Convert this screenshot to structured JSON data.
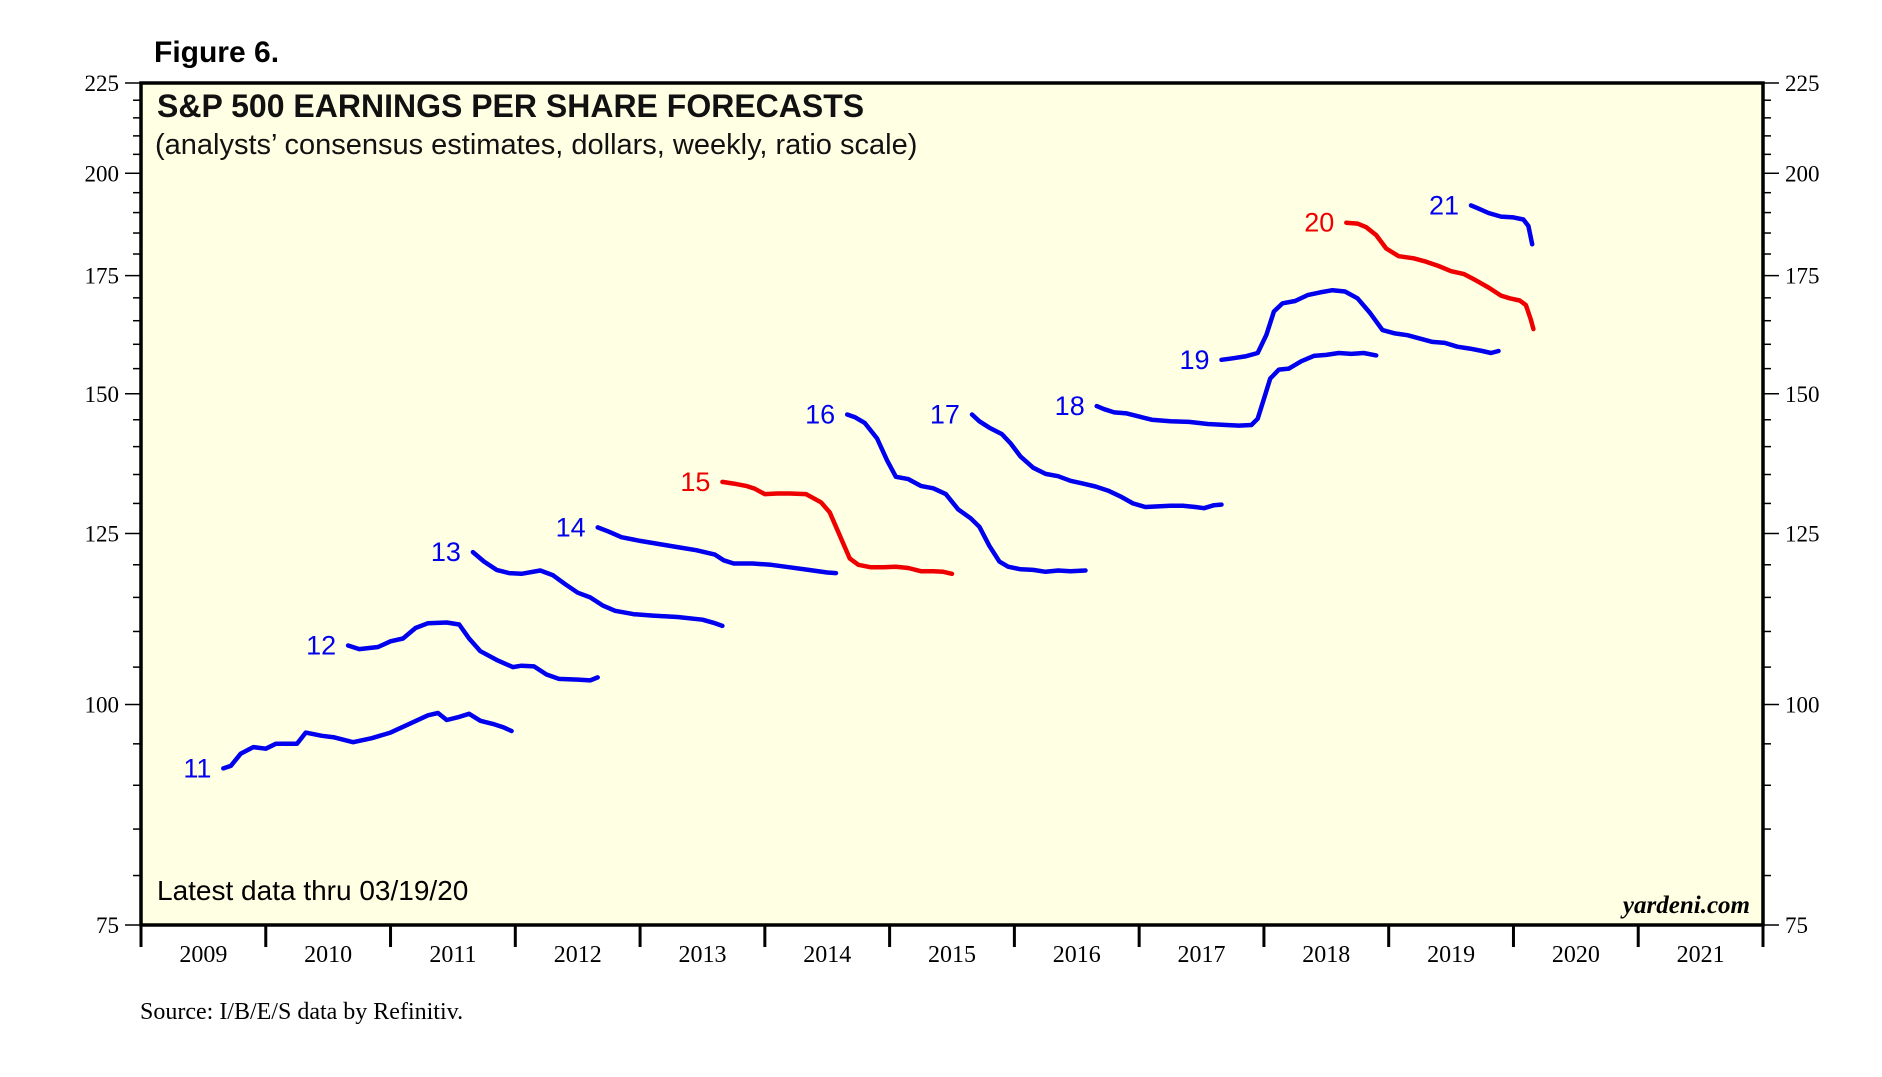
{
  "figure_label": "Figure 6.",
  "source": "Source: I/B/E/S data by Refinitiv.",
  "note": "Latest data thru 03/19/20",
  "credit": "yardeni.com",
  "colors": {
    "blue": "#0000ee",
    "red": "#ee0000",
    "plot_bg": "#ffffe3",
    "frame": "#000000"
  },
  "chart_data": {
    "type": "line",
    "title": "S&P 500 EARNINGS PER SHARE FORECASTS",
    "subtitle": "(analysts’ consensus estimates, dollars, weekly, ratio scale)",
    "y_scale": "log",
    "ylim": [
      75,
      225
    ],
    "xlim": [
      2009.0,
      2022.0
    ],
    "y_ticks": [
      75,
      100,
      125,
      150,
      175,
      200,
      225
    ],
    "y_tick_labels": [
      "75",
      "100",
      "125",
      "150",
      "175",
      "200",
      "225"
    ],
    "x_tick_labels": [
      "2009",
      "2010",
      "2011",
      "2012",
      "2013",
      "2014",
      "2015",
      "2016",
      "2017",
      "2018",
      "2019",
      "2020",
      "2021"
    ],
    "grid": false,
    "series": [
      {
        "name": "11",
        "color": "#0000ee",
        "points": [
          [
            2009.66,
            92
          ],
          [
            2009.72,
            92.3
          ],
          [
            2009.8,
            93.8
          ],
          [
            2009.9,
            94.6
          ],
          [
            2010.0,
            94.4
          ],
          [
            2010.08,
            95
          ],
          [
            2010.15,
            95
          ],
          [
            2010.25,
            95
          ],
          [
            2010.32,
            96.4
          ],
          [
            2010.45,
            96
          ],
          [
            2010.55,
            95.8
          ],
          [
            2010.7,
            95.2
          ],
          [
            2010.85,
            95.7
          ],
          [
            2011.0,
            96.4
          ],
          [
            2011.15,
            97.5
          ],
          [
            2011.3,
            98.6
          ],
          [
            2011.38,
            98.9
          ],
          [
            2011.45,
            98
          ],
          [
            2011.55,
            98.4
          ],
          [
            2011.63,
            98.8
          ],
          [
            2011.72,
            97.9
          ],
          [
            2011.82,
            97.5
          ],
          [
            2011.9,
            97.1
          ],
          [
            2011.97,
            96.6
          ]
        ]
      },
      {
        "name": "12",
        "color": "#0000ee",
        "points": [
          [
            2010.66,
            108
          ],
          [
            2010.75,
            107.5
          ],
          [
            2010.9,
            107.8
          ],
          [
            2011.0,
            108.6
          ],
          [
            2011.1,
            109
          ],
          [
            2011.2,
            110.5
          ],
          [
            2011.3,
            111.2
          ],
          [
            2011.45,
            111.3
          ],
          [
            2011.55,
            111
          ],
          [
            2011.63,
            109
          ],
          [
            2011.72,
            107.2
          ],
          [
            2011.85,
            106
          ],
          [
            2011.98,
            105
          ],
          [
            2012.05,
            105.2
          ],
          [
            2012.15,
            105.1
          ],
          [
            2012.25,
            104
          ],
          [
            2012.35,
            103.4
          ],
          [
            2012.5,
            103.3
          ],
          [
            2012.6,
            103.2
          ],
          [
            2012.66,
            103.6
          ]
        ]
      },
      {
        "name": "13",
        "color": "#0000ee",
        "points": [
          [
            2011.66,
            122
          ],
          [
            2011.75,
            120.5
          ],
          [
            2011.85,
            119.2
          ],
          [
            2011.95,
            118.7
          ],
          [
            2012.05,
            118.6
          ],
          [
            2012.2,
            119.1
          ],
          [
            2012.3,
            118.4
          ],
          [
            2012.4,
            117
          ],
          [
            2012.5,
            115.7
          ],
          [
            2012.6,
            115
          ],
          [
            2012.7,
            113.8
          ],
          [
            2012.8,
            113
          ],
          [
            2012.95,
            112.5
          ],
          [
            2013.1,
            112.3
          ],
          [
            2013.3,
            112.1
          ],
          [
            2013.5,
            111.7
          ],
          [
            2013.6,
            111.2
          ],
          [
            2013.66,
            110.8
          ]
        ]
      },
      {
        "name": "14",
        "color": "#0000ee",
        "points": [
          [
            2012.66,
            126
          ],
          [
            2012.75,
            125.3
          ],
          [
            2012.85,
            124.4
          ],
          [
            2013.0,
            123.8
          ],
          [
            2013.15,
            123.3
          ],
          [
            2013.3,
            122.8
          ],
          [
            2013.45,
            122.3
          ],
          [
            2013.6,
            121.6
          ],
          [
            2013.67,
            120.7
          ],
          [
            2013.75,
            120.2
          ],
          [
            2013.9,
            120.2
          ],
          [
            2014.05,
            120
          ],
          [
            2014.2,
            119.6
          ],
          [
            2014.35,
            119.2
          ],
          [
            2014.5,
            118.8
          ],
          [
            2014.57,
            118.7
          ]
        ]
      },
      {
        "name": "15",
        "color": "#ee0000",
        "points": [
          [
            2013.66,
            133.7
          ],
          [
            2013.75,
            133.4
          ],
          [
            2013.85,
            133
          ],
          [
            2013.92,
            132.5
          ],
          [
            2014.0,
            131.6
          ],
          [
            2014.1,
            131.7
          ],
          [
            2014.2,
            131.7
          ],
          [
            2014.33,
            131.6
          ],
          [
            2014.45,
            130.2
          ],
          [
            2014.52,
            128.5
          ],
          [
            2014.6,
            124.7
          ],
          [
            2014.68,
            121
          ],
          [
            2014.75,
            120
          ],
          [
            2014.85,
            119.6
          ],
          [
            2014.95,
            119.6
          ],
          [
            2015.05,
            119.7
          ],
          [
            2015.15,
            119.5
          ],
          [
            2015.25,
            119
          ],
          [
            2015.35,
            119
          ],
          [
            2015.43,
            118.9
          ],
          [
            2015.5,
            118.6
          ]
        ]
      },
      {
        "name": "16",
        "color": "#0000ee",
        "points": [
          [
            2014.66,
            146
          ],
          [
            2014.72,
            145.5
          ],
          [
            2014.8,
            144.4
          ],
          [
            2014.9,
            141.5
          ],
          [
            2014.98,
            137.5
          ],
          [
            2015.05,
            134.6
          ],
          [
            2015.15,
            134.2
          ],
          [
            2015.25,
            133
          ],
          [
            2015.35,
            132.6
          ],
          [
            2015.45,
            131.6
          ],
          [
            2015.55,
            129
          ],
          [
            2015.65,
            127.5
          ],
          [
            2015.72,
            126.1
          ],
          [
            2015.8,
            123
          ],
          [
            2015.88,
            120.5
          ],
          [
            2015.95,
            119.7
          ],
          [
            2016.05,
            119.3
          ],
          [
            2016.15,
            119.2
          ],
          [
            2016.25,
            118.9
          ],
          [
            2016.35,
            119.1
          ],
          [
            2016.45,
            119
          ],
          [
            2016.57,
            119.1
          ]
        ]
      },
      {
        "name": "17",
        "color": "#0000ee",
        "points": [
          [
            2015.66,
            146
          ],
          [
            2015.72,
            144.7
          ],
          [
            2015.8,
            143.5
          ],
          [
            2015.9,
            142.3
          ],
          [
            2015.97,
            140.6
          ],
          [
            2016.05,
            138.2
          ],
          [
            2016.15,
            136.2
          ],
          [
            2016.25,
            135.1
          ],
          [
            2016.35,
            134.7
          ],
          [
            2016.45,
            133.9
          ],
          [
            2016.55,
            133.4
          ],
          [
            2016.65,
            132.9
          ],
          [
            2016.75,
            132.2
          ],
          [
            2016.85,
            131.2
          ],
          [
            2016.95,
            130
          ],
          [
            2017.05,
            129.4
          ],
          [
            2017.15,
            129.5
          ],
          [
            2017.25,
            129.6
          ],
          [
            2017.35,
            129.6
          ],
          [
            2017.45,
            129.4
          ],
          [
            2017.52,
            129.2
          ],
          [
            2017.6,
            129.7
          ],
          [
            2017.66,
            129.8
          ]
        ]
      },
      {
        "name": "18",
        "color": "#0000ee",
        "points": [
          [
            2016.66,
            147.6
          ],
          [
            2016.72,
            147
          ],
          [
            2016.8,
            146.4
          ],
          [
            2016.9,
            146.2
          ],
          [
            2017.0,
            145.6
          ],
          [
            2017.1,
            145
          ],
          [
            2017.25,
            144.7
          ],
          [
            2017.4,
            144.6
          ],
          [
            2017.55,
            144.2
          ],
          [
            2017.7,
            144
          ],
          [
            2017.8,
            143.9
          ],
          [
            2017.9,
            144
          ],
          [
            2017.95,
            145.2
          ],
          [
            2018.0,
            149
          ],
          [
            2018.05,
            153
          ],
          [
            2018.12,
            154.8
          ],
          [
            2018.2,
            155
          ],
          [
            2018.3,
            156.5
          ],
          [
            2018.4,
            157.6
          ],
          [
            2018.5,
            157.8
          ],
          [
            2018.6,
            158.2
          ],
          [
            2018.7,
            158
          ],
          [
            2018.8,
            158.2
          ],
          [
            2018.9,
            157.7
          ]
        ]
      },
      {
        "name": "19",
        "color": "#0000ee",
        "points": [
          [
            2017.66,
            156.8
          ],
          [
            2017.75,
            157.1
          ],
          [
            2017.85,
            157.5
          ],
          [
            2017.95,
            158.2
          ],
          [
            2018.02,
            162
          ],
          [
            2018.08,
            167
          ],
          [
            2018.15,
            168.8
          ],
          [
            2018.25,
            169.3
          ],
          [
            2018.35,
            170.6
          ],
          [
            2018.45,
            171.2
          ],
          [
            2018.55,
            171.7
          ],
          [
            2018.65,
            171.4
          ],
          [
            2018.75,
            169.9
          ],
          [
            2018.85,
            166.7
          ],
          [
            2018.95,
            163
          ],
          [
            2019.05,
            162.3
          ],
          [
            2019.15,
            161.9
          ],
          [
            2019.25,
            161.2
          ],
          [
            2019.35,
            160.5
          ],
          [
            2019.45,
            160.3
          ],
          [
            2019.55,
            159.5
          ],
          [
            2019.65,
            159.1
          ],
          [
            2019.75,
            158.6
          ],
          [
            2019.82,
            158.2
          ],
          [
            2019.88,
            158.6
          ]
        ]
      },
      {
        "name": "20",
        "color": "#ee0000",
        "points": [
          [
            2018.66,
            187.5
          ],
          [
            2018.75,
            187.3
          ],
          [
            2018.82,
            186.4
          ],
          [
            2018.9,
            184.5
          ],
          [
            2018.98,
            181.3
          ],
          [
            2019.08,
            179.5
          ],
          [
            2019.2,
            179
          ],
          [
            2019.3,
            178.2
          ],
          [
            2019.4,
            177.2
          ],
          [
            2019.5,
            176
          ],
          [
            2019.6,
            175.4
          ],
          [
            2019.7,
            173.9
          ],
          [
            2019.8,
            172.3
          ],
          [
            2019.9,
            170.5
          ],
          [
            2019.97,
            169.9
          ],
          [
            2020.05,
            169.4
          ],
          [
            2020.1,
            168.4
          ],
          [
            2020.14,
            165.2
          ],
          [
            2020.16,
            163.2
          ]
        ]
      },
      {
        "name": "21",
        "color": "#0000ee",
        "points": [
          [
            2019.66,
            191.8
          ],
          [
            2019.72,
            191
          ],
          [
            2019.8,
            189.9
          ],
          [
            2019.9,
            189
          ],
          [
            2020.0,
            188.8
          ],
          [
            2020.08,
            188.3
          ],
          [
            2020.12,
            186.7
          ],
          [
            2020.15,
            182.3
          ]
        ]
      }
    ]
  }
}
